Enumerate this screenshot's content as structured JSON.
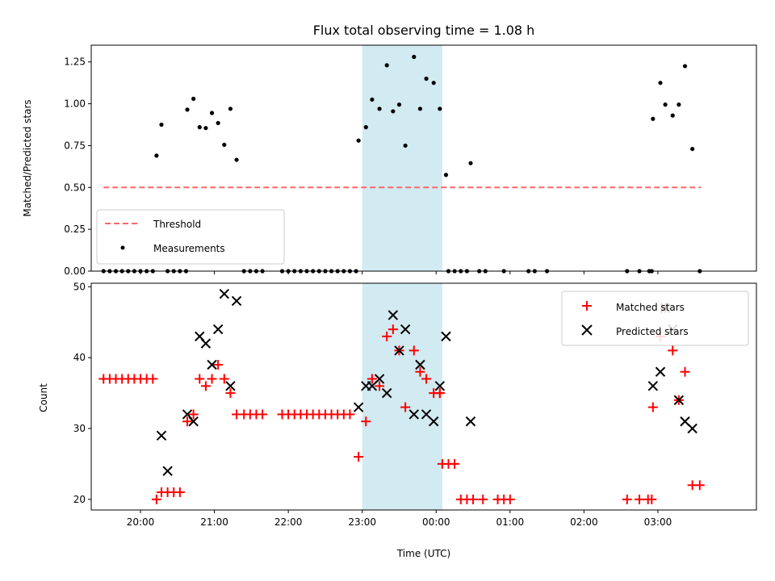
{
  "chart_data": [
    {
      "type": "scatter",
      "title": "Flux total observing time = 1.08 h",
      "xlabel": "",
      "ylabel": "Matched/Predicted stars",
      "xlim": [
        "19:20",
        "04:20"
      ],
      "ylim": [
        0,
        1.35
      ],
      "y_ticks": [
        "0.00",
        "0.25",
        "0.50",
        "0.75",
        "1.00",
        "1.25"
      ],
      "shaded_interval": [
        "23:00",
        "00:05"
      ],
      "threshold": {
        "name": "Threshold",
        "value": 0.5,
        "x_range": [
          "19:30",
          "03:35"
        ],
        "color": "#ff6666"
      },
      "legend": {
        "placement": "lower-left",
        "entries": [
          "Threshold",
          "Measurements"
        ]
      },
      "series": [
        {
          "name": "Measurements",
          "color": "#000000",
          "points": [
            [
              "19:30",
              0
            ],
            [
              "19:35",
              0
            ],
            [
              "19:40",
              0
            ],
            [
              "19:45",
              0
            ],
            [
              "19:50",
              0
            ],
            [
              "19:55",
              0
            ],
            [
              "20:00",
              0
            ],
            [
              "20:05",
              0
            ],
            [
              "20:10",
              0
            ],
            [
              "20:13",
              0.69
            ],
            [
              "20:17",
              0.875
            ],
            [
              "20:22",
              0
            ],
            [
              "20:27",
              0
            ],
            [
              "20:32",
              0
            ],
            [
              "20:37",
              0
            ],
            [
              "20:38",
              0.965
            ],
            [
              "20:43",
              1.03
            ],
            [
              "20:48",
              0.86
            ],
            [
              "20:53",
              0.855
            ],
            [
              "20:58",
              0.945
            ],
            [
              "21:03",
              0.885
            ],
            [
              "21:08",
              0.755
            ],
            [
              "21:13",
              0.97
            ],
            [
              "21:18",
              0.665
            ],
            [
              "21:24",
              0
            ],
            [
              "21:29",
              0
            ],
            [
              "21:34",
              0
            ],
            [
              "21:39",
              0
            ],
            [
              "21:55",
              0
            ],
            [
              "22:00",
              0
            ],
            [
              "22:05",
              0
            ],
            [
              "22:10",
              0
            ],
            [
              "22:15",
              0
            ],
            [
              "22:20",
              0
            ],
            [
              "22:25",
              0
            ],
            [
              "22:30",
              0
            ],
            [
              "22:35",
              0
            ],
            [
              "22:40",
              0
            ],
            [
              "22:45",
              0
            ],
            [
              "22:50",
              0
            ],
            [
              "22:55",
              0
            ],
            [
              "22:57",
              0.78
            ],
            [
              "23:03",
              0.86
            ],
            [
              "23:08",
              1.025
            ],
            [
              "23:14",
              0.97
            ],
            [
              "23:20",
              1.23
            ],
            [
              "23:25",
              0.955
            ],
            [
              "23:30",
              0.995
            ],
            [
              "23:35",
              0.75
            ],
            [
              "23:42",
              1.28
            ],
            [
              "23:47",
              0.97
            ],
            [
              "23:52",
              1.15
            ],
            [
              "23:58",
              1.125
            ],
            [
              "00:03",
              0.97
            ],
            [
              "00:08",
              0.575
            ],
            [
              "00:10",
              0
            ],
            [
              "00:15",
              0
            ],
            [
              "00:20",
              0
            ],
            [
              "00:25",
              0
            ],
            [
              "00:28",
              0.645
            ],
            [
              "00:35",
              0
            ],
            [
              "00:40",
              0
            ],
            [
              "00:55",
              0
            ],
            [
              "01:15",
              0
            ],
            [
              "01:20",
              0
            ],
            [
              "01:30",
              0
            ],
            [
              "02:35",
              0
            ],
            [
              "02:45",
              0
            ],
            [
              "02:53",
              0
            ],
            [
              "02:55",
              0
            ],
            [
              "02:56",
              0.91
            ],
            [
              "03:02",
              1.125
            ],
            [
              "03:06",
              0.995
            ],
            [
              "03:12",
              0.93
            ],
            [
              "03:17",
              0.995
            ],
            [
              "03:22",
              1.225
            ],
            [
              "03:28",
              0.73
            ],
            [
              "03:34",
              0
            ]
          ]
        }
      ]
    },
    {
      "type": "scatter",
      "title": "",
      "xlabel": "Time (UTC)",
      "ylabel": "Count",
      "xlim": [
        "19:20",
        "04:20"
      ],
      "ylim": [
        18.5,
        50.5
      ],
      "y_ticks": [
        "20",
        "30",
        "40",
        "50"
      ],
      "x_ticks": [
        "20:00",
        "21:00",
        "22:00",
        "23:00",
        "00:00",
        "01:00",
        "02:00",
        "03:00"
      ],
      "shaded_interval": [
        "23:00",
        "00:05"
      ],
      "legend": {
        "placement": "upper-right",
        "entries": [
          "Matched stars",
          "Predicted stars"
        ]
      },
      "series": [
        {
          "name": "Matched stars",
          "marker": "+",
          "color": "#ff0000",
          "points": [
            [
              "19:30",
              37
            ],
            [
              "19:35",
              37
            ],
            [
              "19:40",
              37
            ],
            [
              "19:45",
              37
            ],
            [
              "19:50",
              37
            ],
            [
              "19:55",
              37
            ],
            [
              "20:00",
              37
            ],
            [
              "20:05",
              37
            ],
            [
              "20:10",
              37
            ],
            [
              "20:13",
              20
            ],
            [
              "20:17",
              21
            ],
            [
              "20:22",
              21
            ],
            [
              "20:27",
              21
            ],
            [
              "20:32",
              21
            ],
            [
              "20:38",
              31
            ],
            [
              "20:43",
              32
            ],
            [
              "20:48",
              37
            ],
            [
              "20:53",
              36
            ],
            [
              "20:58",
              37
            ],
            [
              "21:03",
              39
            ],
            [
              "21:08",
              37
            ],
            [
              "21:13",
              35
            ],
            [
              "21:18",
              32
            ],
            [
              "21:24",
              32
            ],
            [
              "21:29",
              32
            ],
            [
              "21:34",
              32
            ],
            [
              "21:39",
              32
            ],
            [
              "21:55",
              32
            ],
            [
              "22:00",
              32
            ],
            [
              "22:05",
              32
            ],
            [
              "22:10",
              32
            ],
            [
              "22:15",
              32
            ],
            [
              "22:20",
              32
            ],
            [
              "22:25",
              32
            ],
            [
              "22:30",
              32
            ],
            [
              "22:35",
              32
            ],
            [
              "22:40",
              32
            ],
            [
              "22:45",
              32
            ],
            [
              "22:50",
              32
            ],
            [
              "22:57",
              26
            ],
            [
              "23:03",
              31
            ],
            [
              "23:08",
              37
            ],
            [
              "23:14",
              36
            ],
            [
              "23:20",
              43
            ],
            [
              "23:25",
              44
            ],
            [
              "23:30",
              41
            ],
            [
              "23:35",
              33
            ],
            [
              "23:42",
              41
            ],
            [
              "23:47",
              38
            ],
            [
              "23:52",
              37
            ],
            [
              "23:58",
              35
            ],
            [
              "00:03",
              35
            ],
            [
              "00:03",
              35
            ],
            [
              "00:05",
              25
            ],
            [
              "00:10",
              25
            ],
            [
              "00:15",
              25
            ],
            [
              "00:20",
              20
            ],
            [
              "00:25",
              20
            ],
            [
              "00:30",
              20
            ],
            [
              "00:38",
              20
            ],
            [
              "00:50",
              20
            ],
            [
              "00:55",
              20
            ],
            [
              "01:00",
              20
            ],
            [
              "02:35",
              20
            ],
            [
              "02:45",
              20
            ],
            [
              "02:52",
              20
            ],
            [
              "02:55",
              20
            ],
            [
              "02:56",
              33
            ],
            [
              "03:02",
              43
            ],
            [
              "03:06",
              47
            ],
            [
              "03:12",
              41
            ],
            [
              "03:17",
              34
            ],
            [
              "03:22",
              38
            ],
            [
              "03:28",
              22
            ],
            [
              "03:34",
              22
            ]
          ]
        },
        {
          "name": "Predicted stars",
          "marker": "x",
          "color": "#000000",
          "points": [
            [
              "20:17",
              29
            ],
            [
              "20:22",
              24
            ],
            [
              "20:38",
              32
            ],
            [
              "20:43",
              31
            ],
            [
              "20:48",
              43
            ],
            [
              "20:53",
              42
            ],
            [
              "20:58",
              39
            ],
            [
              "21:03",
              44
            ],
            [
              "21:08",
              49
            ],
            [
              "21:13",
              36
            ],
            [
              "21:18",
              48
            ],
            [
              "22:57",
              33
            ],
            [
              "23:03",
              36
            ],
            [
              "23:08",
              36
            ],
            [
              "23:14",
              37
            ],
            [
              "23:20",
              35
            ],
            [
              "23:25",
              46
            ],
            [
              "23:30",
              41
            ],
            [
              "23:35",
              44
            ],
            [
              "23:42",
              32
            ],
            [
              "23:47",
              39
            ],
            [
              "23:52",
              32
            ],
            [
              "23:58",
              31
            ],
            [
              "00:03",
              36
            ],
            [
              "00:08",
              43
            ],
            [
              "00:28",
              31
            ],
            [
              "02:56",
              36
            ],
            [
              "03:02",
              38
            ],
            [
              "03:06",
              47
            ],
            [
              "03:12",
              44
            ],
            [
              "03:17",
              34
            ],
            [
              "03:22",
              31
            ],
            [
              "03:28",
              30
            ]
          ]
        }
      ]
    }
  ]
}
